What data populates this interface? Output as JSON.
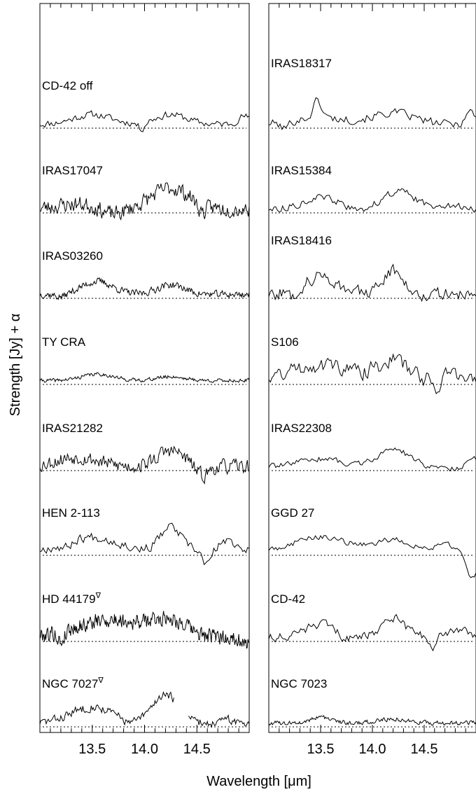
{
  "chart_data": {
    "type": "line",
    "xlabel": "Wavelength [μm]",
    "ylabel": "Strength [Jy] + α",
    "xlim": [
      13.0,
      15.0
    ],
    "x_ticks": [
      13.5,
      14.0,
      14.5
    ],
    "x_tick_labels": [
      "13.5",
      "14.0",
      "14.5"
    ],
    "baseline": "dotted",
    "panels": [
      {
        "name": "left",
        "series": [
          {
            "label": "CD-42 off",
            "marker": "",
            "n": 130,
            "noise": 0.1,
            "seed": 11,
            "bumps": [
              [
                13.5,
                0.3,
                0.18
              ],
              [
                14.25,
                0.3,
                0.15
              ],
              [
                14.95,
                0.25,
                0.06
              ]
            ],
            "dips": [
              [
                13.97,
                0.2,
                0.03
              ]
            ],
            "gaps": []
          },
          {
            "label": "IRAS17047",
            "marker": "",
            "n": 230,
            "noise": 0.22,
            "seed": 23,
            "bumps": [
              [
                13.35,
                0.15,
                0.2
              ],
              [
                14.25,
                0.65,
                0.18
              ]
            ],
            "dips": [
              [
                13.7,
                0.2,
                0.1
              ],
              [
                14.55,
                0.25,
                0.04
              ]
            ],
            "gaps": []
          },
          {
            "label": "IRAS03260",
            "marker": "",
            "n": 250,
            "noise": 0.1,
            "seed": 37,
            "bumps": [
              [
                13.55,
                0.4,
                0.15
              ],
              [
                14.25,
                0.3,
                0.13
              ]
            ],
            "dips": [
              [
                13.2,
                0.1,
                0.05
              ]
            ],
            "gaps": []
          },
          {
            "label": "TY CRA",
            "marker": "",
            "n": 260,
            "noise": 0.05,
            "seed": 41,
            "bumps": [
              [
                13.55,
                0.2,
                0.15
              ],
              [
                14.25,
                0.12,
                0.13
              ]
            ],
            "dips": [],
            "gaps": []
          },
          {
            "label": "IRAS21282",
            "marker": "",
            "n": 220,
            "noise": 0.2,
            "seed": 53,
            "bumps": [
              [
                13.35,
                0.3,
                0.2
              ],
              [
                14.25,
                0.5,
                0.13
              ]
            ],
            "dips": [
              [
                14.55,
                0.3,
                0.06
              ]
            ],
            "gaps": []
          },
          {
            "label": "HEN 2-113",
            "marker": "",
            "n": 130,
            "noise": 0.13,
            "seed": 67,
            "bumps": [
              [
                13.5,
                0.45,
                0.25
              ],
              [
                14.25,
                0.75,
                0.1
              ],
              [
                14.8,
                0.3,
                0.1
              ]
            ],
            "dips": [
              [
                13.25,
                0.15,
                0.05
              ],
              [
                14.6,
                0.45,
                0.04
              ]
            ],
            "gaps": []
          },
          {
            "label": "HD 44179",
            "marker": "∇",
            "n": 320,
            "noise": 0.22,
            "seed": 79,
            "bumps": [
              [
                13.7,
                0.55,
                0.35
              ],
              [
                14.25,
                0.45,
                0.15
              ]
            ],
            "dips": [
              [
                13.2,
                0.35,
                0.03
              ],
              [
                14.97,
                0.25,
                0.03
              ]
            ],
            "gaps": []
          },
          {
            "label": "NGC 7027",
            "marker": "∇",
            "n": 200,
            "noise": 0.12,
            "seed": 83,
            "bumps": [
              [
                13.5,
                0.5,
                0.2
              ],
              [
                14.2,
                0.9,
                0.12
              ],
              [
                14.8,
                0.1,
                0.05
              ]
            ],
            "dips": [
              [
                13.85,
                0.1,
                0.05
              ]
            ],
            "gaps": [
              [
                14.28,
                14.42
              ]
            ]
          }
        ]
      },
      {
        "name": "right",
        "series": [
          {
            "label": "IRAS18317",
            "marker": "",
            "n": 110,
            "noise": 0.12,
            "seed": 101,
            "bumps": [
              [
                13.47,
                0.55,
                0.04
              ],
              [
                13.5,
                0.2,
                0.25
              ],
              [
                14.2,
                0.35,
                0.2
              ],
              [
                14.95,
                0.4,
                0.05
              ]
            ],
            "dips": [
              [
                13.15,
                0.2,
                0.04
              ]
            ],
            "gaps": []
          },
          {
            "label": "IRAS15384",
            "marker": "",
            "n": 120,
            "noise": 0.1,
            "seed": 113,
            "bumps": [
              [
                13.5,
                0.35,
                0.17
              ],
              [
                14.25,
                0.55,
                0.15
              ],
              [
                14.7,
                0.15,
                0.1
              ]
            ],
            "dips": [
              [
                13.85,
                0.1,
                0.08
              ]
            ],
            "gaps": []
          },
          {
            "label": "IRAS18416",
            "marker": "",
            "n": 130,
            "noise": 0.18,
            "seed": 127,
            "bumps": [
              [
                13.5,
                0.55,
                0.17
              ],
              [
                14.2,
                0.75,
                0.1
              ]
            ],
            "dips": [
              [
                13.25,
                0.2,
                0.05
              ]
            ],
            "gaps": []
          },
          {
            "label": "S106",
            "marker": "",
            "n": 130,
            "noise": 0.22,
            "seed": 131,
            "bumps": [
              [
                13.5,
                0.5,
                0.3
              ],
              [
                14.2,
                0.6,
                0.15
              ],
              [
                14.75,
                0.3,
                0.08
              ]
            ],
            "dips": [
              [
                14.62,
                0.3,
                0.04
              ]
            ],
            "gaps": []
          },
          {
            "label": "IRAS22308",
            "marker": "",
            "n": 120,
            "noise": 0.08,
            "seed": 139,
            "bumps": [
              [
                13.5,
                0.25,
                0.2
              ],
              [
                14.2,
                0.55,
                0.15
              ],
              [
                14.97,
                0.35,
                0.04
              ]
            ],
            "dips": [
              [
                14.7,
                0.05,
                0.1
              ]
            ],
            "gaps": []
          },
          {
            "label": "GGD 27",
            "marker": "",
            "n": 120,
            "noise": 0.08,
            "seed": 149,
            "bumps": [
              [
                13.5,
                0.45,
                0.25
              ],
              [
                14.2,
                0.35,
                0.18
              ],
              [
                14.7,
                0.2,
                0.1
              ]
            ],
            "dips": [
              [
                14.97,
                0.85,
                0.05
              ]
            ],
            "gaps": []
          },
          {
            "label": "CD-42",
            "marker": "",
            "n": 130,
            "noise": 0.12,
            "seed": 151,
            "bumps": [
              [
                13.5,
                0.4,
                0.15
              ],
              [
                14.2,
                0.6,
                0.12
              ],
              [
                14.85,
                0.25,
                0.1
              ]
            ],
            "dips": [
              [
                13.75,
                0.15,
                0.05
              ],
              [
                14.58,
                0.4,
                0.03
              ]
            ],
            "gaps": []
          },
          {
            "label": "NGC 7023",
            "marker": "",
            "n": 230,
            "noise": 0.06,
            "seed": 163,
            "bumps": [
              [
                13.5,
                0.18,
                0.1
              ],
              [
                14.2,
                0.12,
                0.15
              ]
            ],
            "dips": [],
            "gaps": []
          }
        ]
      }
    ]
  }
}
